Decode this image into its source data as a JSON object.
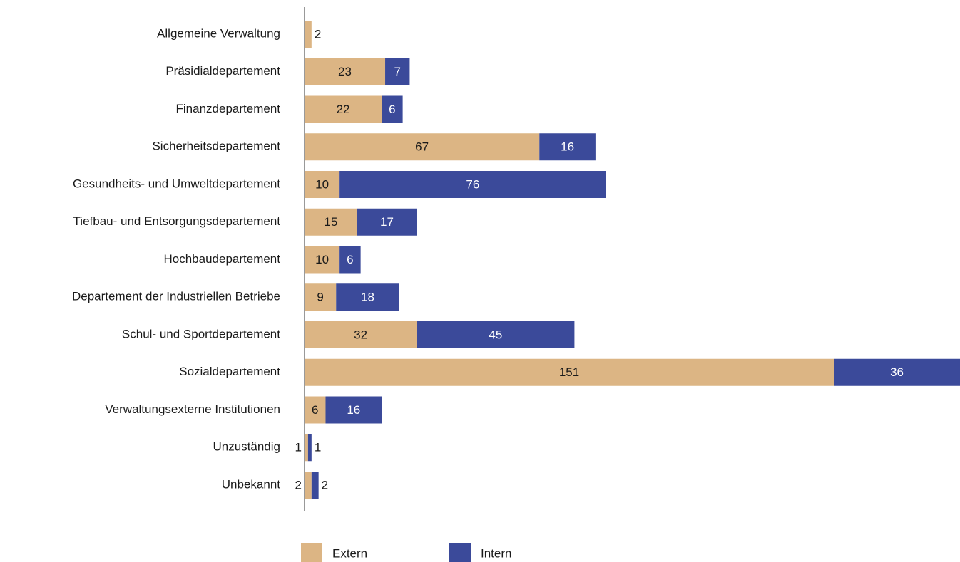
{
  "chart_data": {
    "type": "bar",
    "orientation": "horizontal",
    "stacked": true,
    "categories": [
      "Allgemeine Verwaltung",
      "Präsidialdepartement",
      "Finanzdepartement",
      "Sicherheitsdepartement",
      "Gesundheits- und Umweltdepartement",
      "Tiefbau- und Entsorgungsdepartement",
      "Hochbaudepartement",
      "Departement der Industriellen Betriebe",
      "Schul- und Sportdepartement",
      "Sozialdepartement",
      "Verwaltungsexterne Institutionen",
      "Unzuständig",
      "Unbekannt"
    ],
    "series": [
      {
        "name": "Extern",
        "color": "#dcb584",
        "values": [
          2,
          23,
          22,
          67,
          10,
          15,
          10,
          9,
          32,
          151,
          6,
          1,
          2
        ]
      },
      {
        "name": "Intern",
        "color": "#3b4a9a",
        "values": [
          null,
          7,
          6,
          16,
          76,
          17,
          6,
          18,
          45,
          36,
          16,
          1,
          2
        ]
      }
    ],
    "xlim": [
      0,
      187
    ],
    "legend": "bottom"
  }
}
